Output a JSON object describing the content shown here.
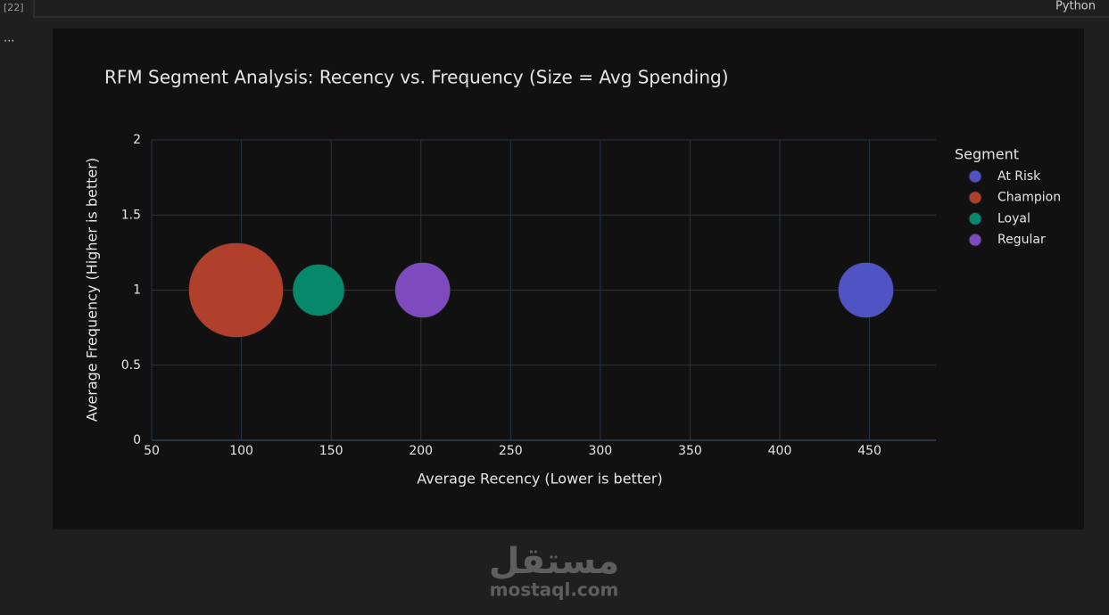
{
  "cell": {
    "label": "[22]",
    "language": "Python",
    "menu": "..."
  },
  "chart_data": {
    "type": "scatter",
    "title": "RFM Segment Analysis: Recency vs. Frequency (Size = Avg Spending)",
    "x_label": "Average Recency (Lower is better)",
    "y_label": "Average Frequency (Higher is better)",
    "legend_title": "Segment",
    "legend_position": "right",
    "grid": true,
    "xlim": [
      50,
      487
    ],
    "xticks": [
      50,
      100,
      150,
      200,
      250,
      300,
      350,
      400,
      450
    ],
    "ylim": [
      0,
      2
    ],
    "yticks": [
      0,
      0.5,
      1,
      1.5,
      2
    ],
    "series": [
      {
        "name": "At Risk",
        "color": "#5053c4",
        "x": [
          448
        ],
        "values": [
          1
        ],
        "sizes": [
          62
        ]
      },
      {
        "name": "Champion",
        "color": "#b0402c",
        "x": [
          97
        ],
        "values": [
          1
        ],
        "sizes": [
          106
        ]
      },
      {
        "name": "Loyal",
        "color": "#06896b",
        "x": [
          143
        ],
        "values": [
          1
        ],
        "sizes": [
          58
        ]
      },
      {
        "name": "Regular",
        "color": "#7e4bbf",
        "x": [
          201
        ],
        "values": [
          1
        ],
        "sizes": [
          62
        ]
      }
    ]
  },
  "watermark": {
    "arabic": "مستقل",
    "latin": "mostaql.com"
  }
}
